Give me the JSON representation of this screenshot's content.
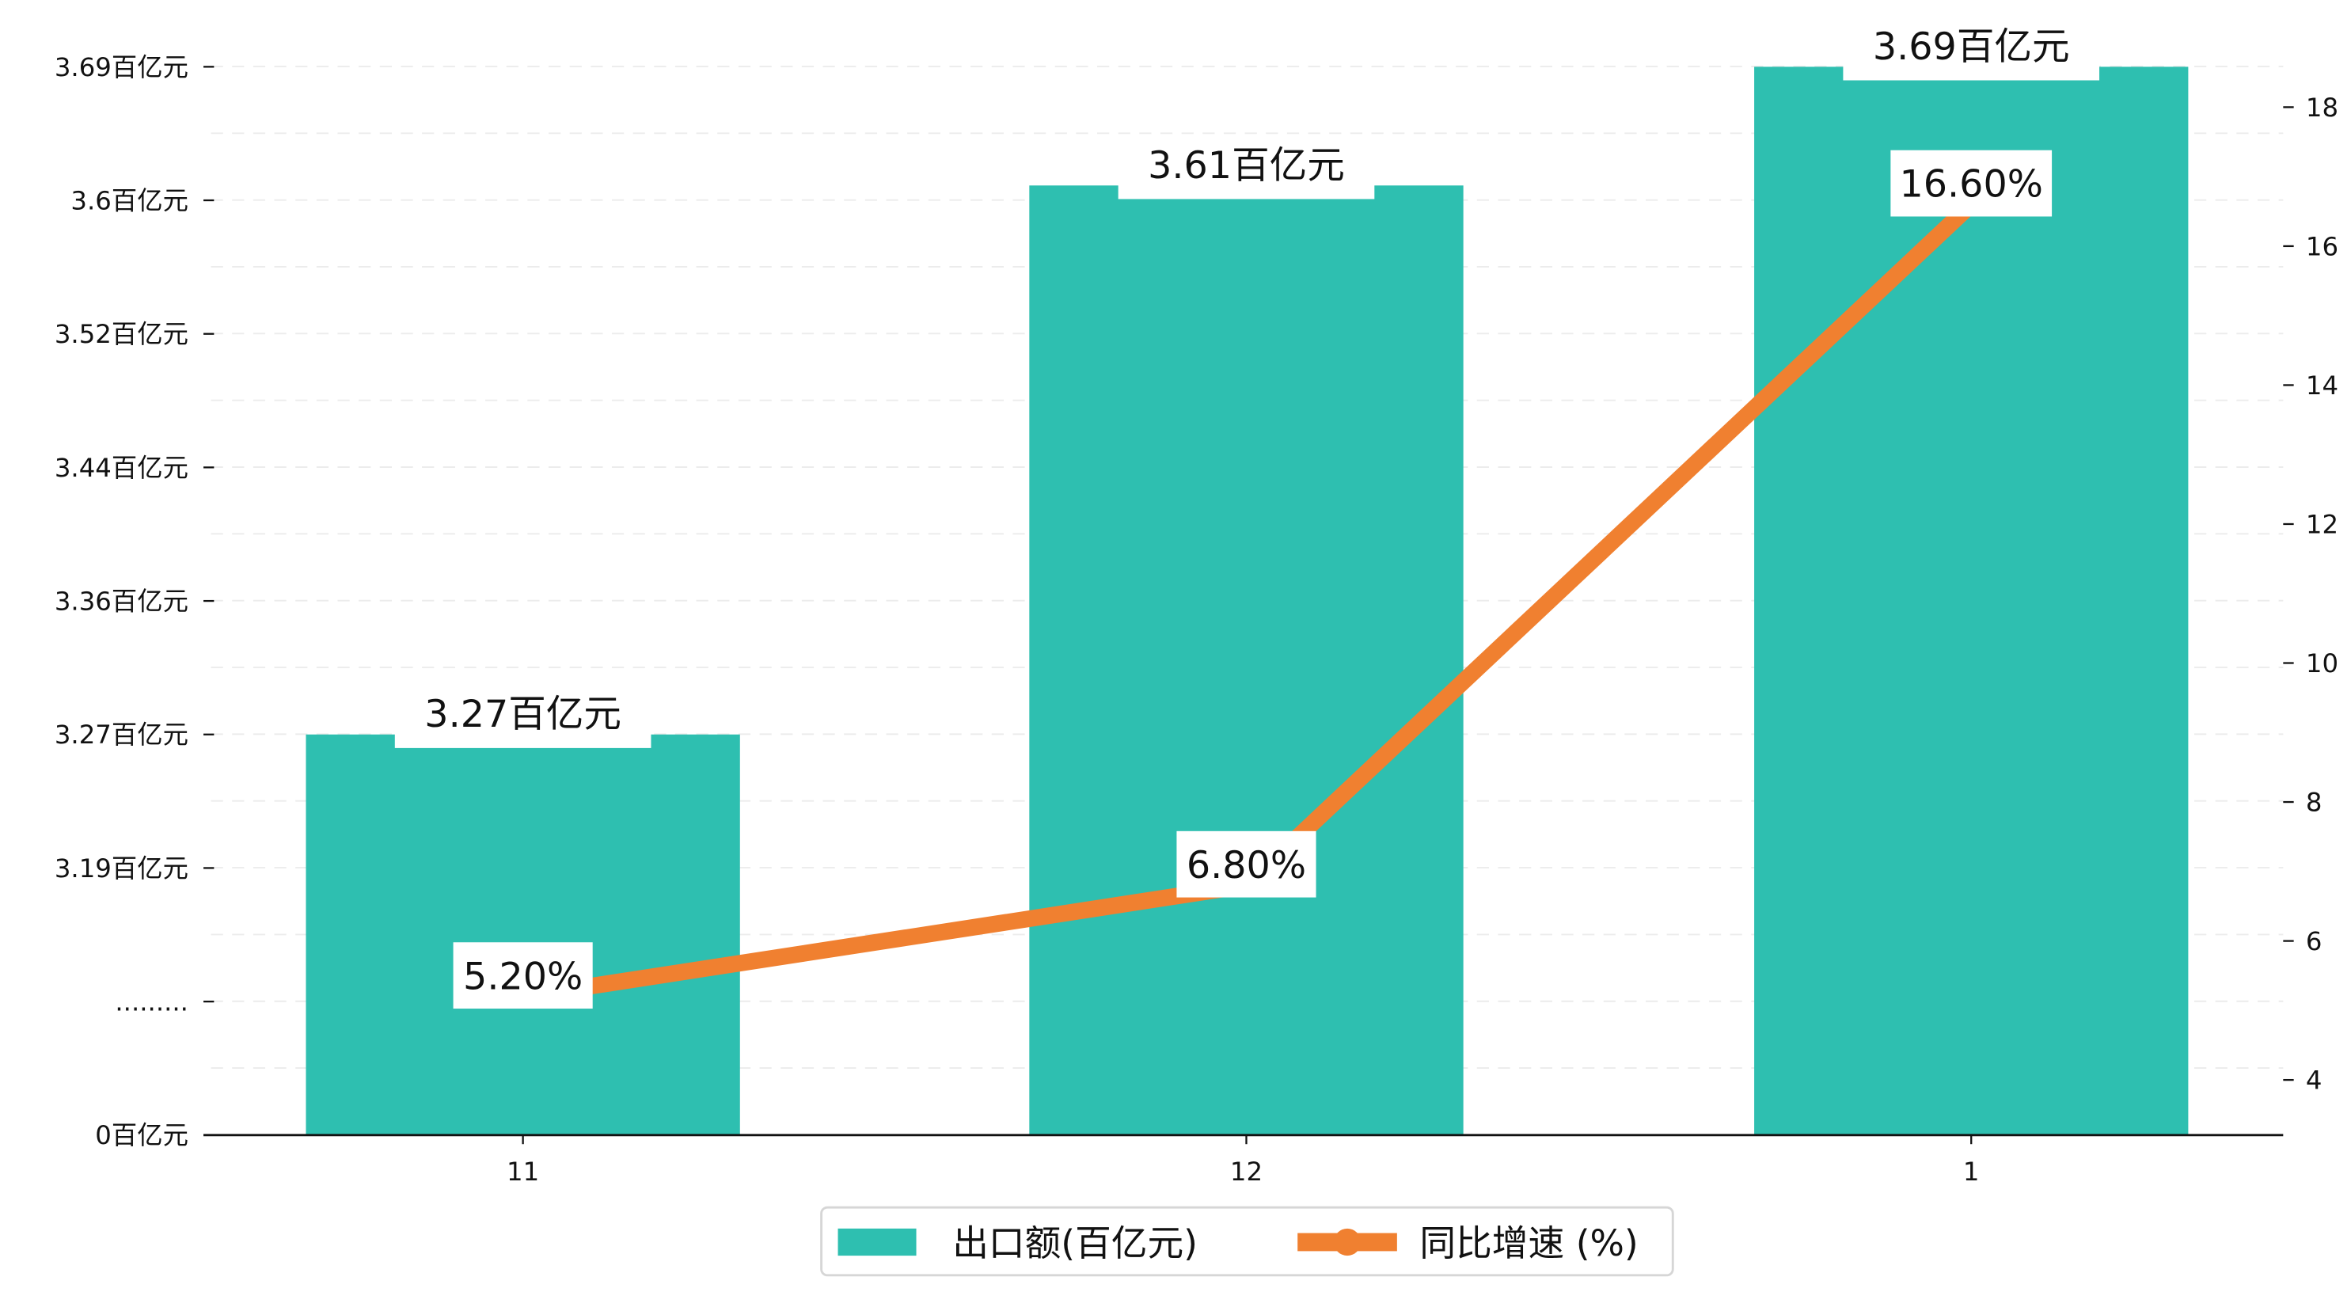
{
  "chart_data": {
    "type": "bar+line",
    "categories": [
      "11",
      "12",
      "1"
    ],
    "series": [
      {
        "name": "出口额(百亿元)",
        "type": "bar",
        "axis": "left",
        "values": [
          3.27,
          3.61,
          3.69
        ],
        "labels": [
          "3.27百亿元",
          "3.61百亿元",
          "3.69百亿元"
        ],
        "color": "#2ebfb0"
      },
      {
        "name": "同比增速 (%)",
        "type": "line",
        "axis": "right",
        "values": [
          5.2,
          6.8,
          16.6
        ],
        "labels": [
          "5.20%",
          "6.80%",
          "16.60%"
        ],
        "color": "#f08030"
      }
    ],
    "left_axis": {
      "tick_values": [
        0,
        null,
        3.19,
        3.27,
        3.36,
        3.44,
        3.52,
        3.6,
        3.69
      ],
      "tick_labels": [
        "0百亿元",
        ".........",
        "3.19百亿元",
        "3.27百亿元",
        "3.36百亿元",
        "3.44百亿元",
        "3.52百亿元",
        "3.6百亿元",
        "3.69百亿元"
      ]
    },
    "right_axis": {
      "ticks": [
        4,
        6,
        8,
        10,
        12,
        14,
        16,
        18
      ],
      "tick_labels": [
        "4",
        "6",
        "8",
        "10",
        "12",
        "14",
        "16",
        "18"
      ],
      "ylim": [
        3.3,
        18.6
      ]
    },
    "grid": "horizontal-dashed",
    "legend": {
      "placement": "bottom-center",
      "entries": [
        "出口额(百亿元)",
        "同比增速 (%)"
      ]
    }
  }
}
